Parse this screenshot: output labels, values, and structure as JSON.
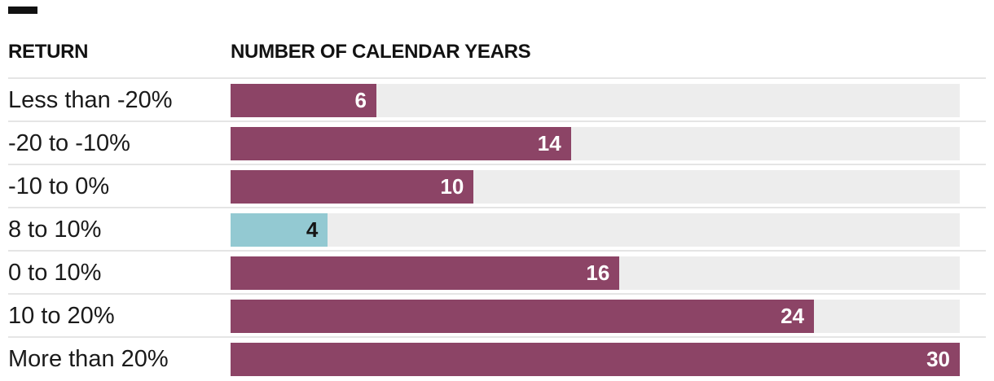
{
  "decorations": {
    "top_left_tab": "black-tab"
  },
  "header": {
    "return_label": "RETURN",
    "years_label": "NUMBER OF CALENDAR YEARS"
  },
  "chart_data": {
    "type": "bar",
    "orientation": "horizontal",
    "title": "",
    "xlabel": "NUMBER OF CALENDAR YEARS",
    "ylabel": "RETURN",
    "categories": [
      "Less than -20%",
      "-20 to -10%",
      "-10 to 0%",
      "8 to 10%",
      "0 to 10%",
      "10 to 20%",
      "More than 20%"
    ],
    "values": [
      6,
      14,
      10,
      4,
      16,
      24,
      30
    ],
    "xlim": [
      0,
      30
    ],
    "grid": false,
    "legend": false,
    "value_labels_inside_bars": true,
    "highlight_index": 3,
    "colors": {
      "bar": "#8c4466",
      "highlight_bar": "#93c9d2",
      "track": "#ededed",
      "separator": "#e5e5e5",
      "value_text": "#ffffff",
      "highlight_value_text": "#151515",
      "label_text": "#1a1a1a",
      "header_text": "#121212"
    }
  }
}
